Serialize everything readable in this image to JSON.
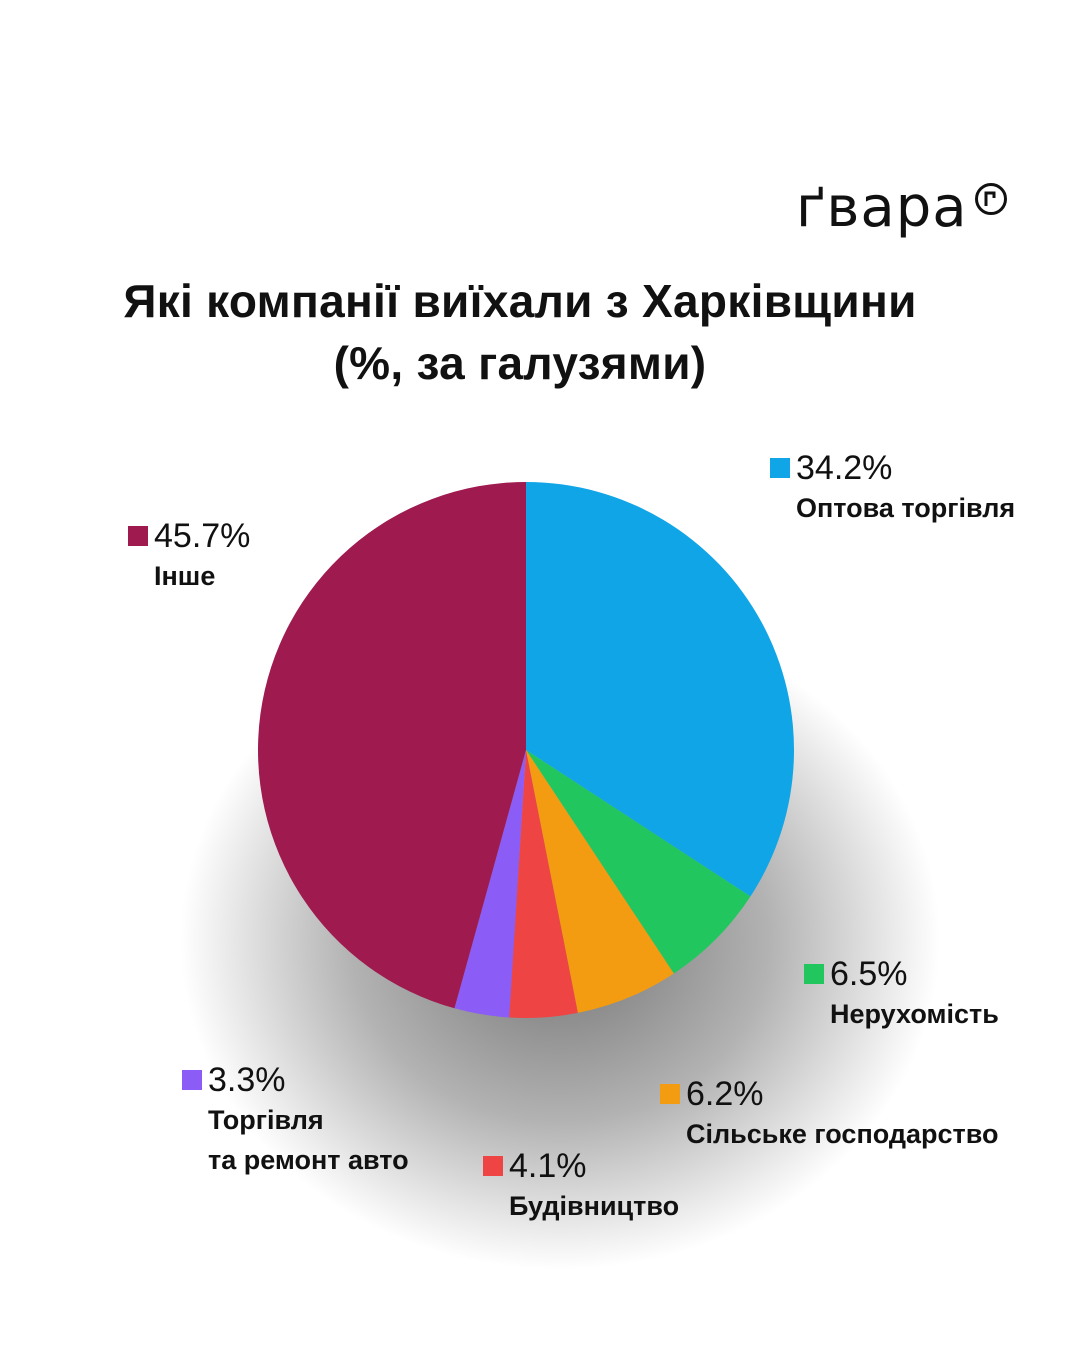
{
  "logo": {
    "text": "ґвара"
  },
  "title_lines": [
    "Які компанії виїхали з Харківщини",
    "(%, за галузями)"
  ],
  "chart_data": {
    "type": "pie",
    "title": "Які компанії виїхали з Харківщини (%, за галузями)",
    "slices": [
      {
        "label_lines": [
          "Оптова торгівля"
        ],
        "value": 34.2,
        "display": "34.2%",
        "color": "#10a5e6"
      },
      {
        "label_lines": [
          "Нерухомість"
        ],
        "value": 6.5,
        "display": "6.5%",
        "color": "#21c65f"
      },
      {
        "label_lines": [
          "Сільське господарство"
        ],
        "value": 6.2,
        "display": "6.2%",
        "color": "#f39c12"
      },
      {
        "label_lines": [
          "Будівництво"
        ],
        "value": 4.1,
        "display": "4.1%",
        "color": "#ef4444"
      },
      {
        "label_lines": [
          "Торгівля",
          "та ремонт авто"
        ],
        "value": 3.3,
        "display": "3.3%",
        "color": "#8b5cf6"
      },
      {
        "label_lines": [
          "Інше"
        ],
        "value": 45.7,
        "display": "45.7%",
        "color": "#9e1a4f"
      }
    ]
  }
}
